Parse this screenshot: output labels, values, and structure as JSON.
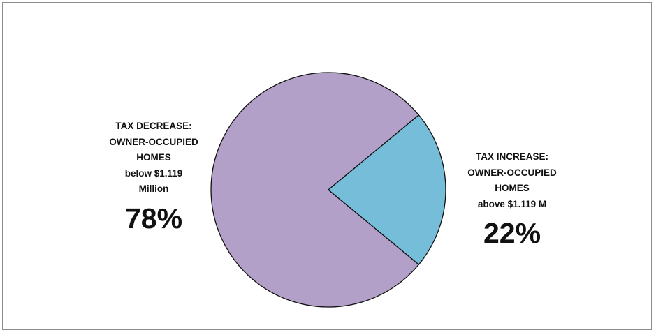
{
  "chart_data": {
    "type": "pie",
    "slices": [
      {
        "label_lines": [
          "TAX DECREASE:",
          "OWNER-OCCUPIED",
          "HOMES",
          "below $1.119",
          "Million"
        ],
        "value": 78,
        "display": "78%",
        "color": "#b2a0c8"
      },
      {
        "label_lines": [
          "TAX INCREASE:",
          "OWNER-OCCUPIED",
          "HOMES",
          "above $1.119 M"
        ],
        "value": 22,
        "display": "22%",
        "color": "#75bdd8"
      }
    ],
    "start_angle_deg": 39.6,
    "direction": "clockwise-from-right-upward",
    "outline_color": "#111111"
  }
}
